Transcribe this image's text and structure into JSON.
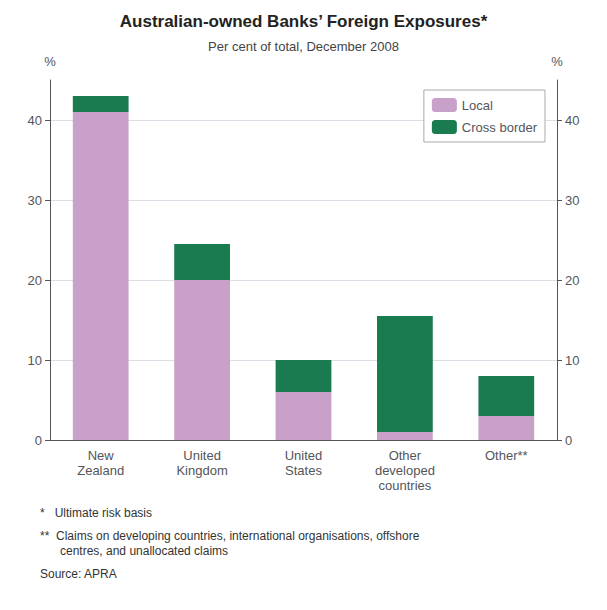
{
  "chart_data": {
    "type": "bar",
    "title": "Australian-owned Banks’ Foreign Exposures*",
    "subtitle": "Per cent of total, December 2008",
    "categories": [
      "New\nZealand",
      "United\nKingdom",
      "United\nStates",
      "Other\ndeveloped\ncountries",
      "Other**"
    ],
    "series": [
      {
        "name": "Local",
        "color": "#c9a0c9",
        "values": [
          41.0,
          20.0,
          6.0,
          1.0,
          3.0
        ]
      },
      {
        "name": "Cross border",
        "color": "#1a7a50",
        "values": [
          2.0,
          4.5,
          4.0,
          14.5,
          5.0
        ]
      }
    ],
    "stacked": true,
    "ylabel": "%",
    "y2label": "%",
    "ylim": [
      0,
      45
    ],
    "yticks": [
      0,
      10,
      20,
      30,
      40
    ],
    "y2lim": [
      0,
      45
    ],
    "y2ticks": [
      0,
      10,
      20,
      30,
      40
    ],
    "grid": true,
    "legend": "upper right",
    "footnotes": [
      "*   Ultimate risk basis",
      "**  Claims on developing countries, international organisations, offshore\n      centres, and unallocated claims",
      "Source: APRA"
    ]
  }
}
